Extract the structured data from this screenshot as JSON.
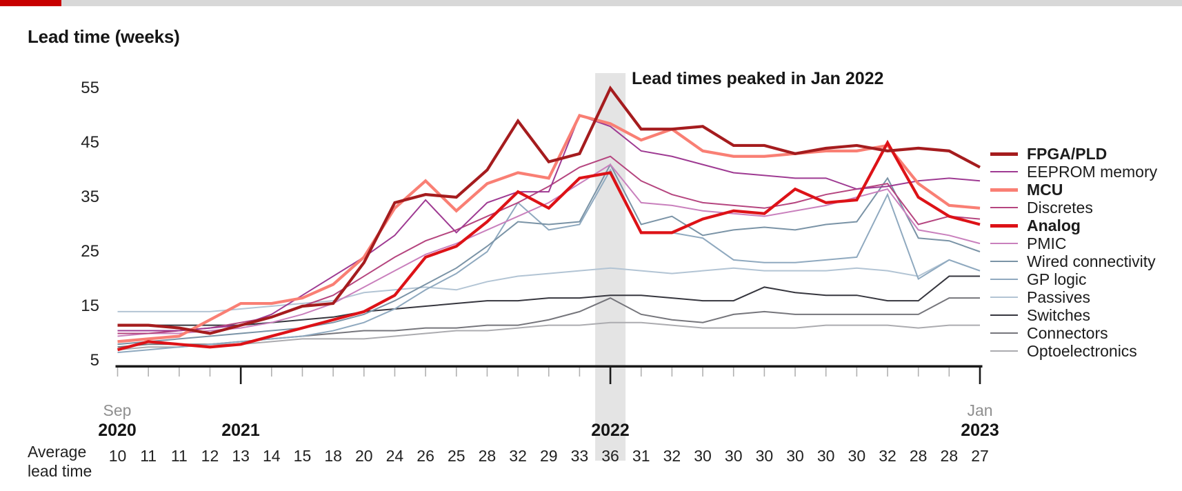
{
  "page": {
    "accent_bar_red": "#c80000",
    "accent_bar_gray": "#d8d8d8",
    "title": "Lead time (weeks)",
    "annotation": "Lead times peaked in Jan 2022"
  },
  "x_axis": {
    "first_month": "Sep",
    "first_year": "2020",
    "year_2021": "2021",
    "year_2022": "2022",
    "last_month": "Jan",
    "last_year": "2023"
  },
  "average_row": {
    "label_line1": "Average",
    "label_line2": "lead time",
    "values": [
      10,
      11,
      11,
      12,
      13,
      14,
      15,
      18,
      20,
      24,
      26,
      25,
      28,
      32,
      29,
      33,
      36,
      31,
      32,
      30,
      30,
      30,
      30,
      30,
      30,
      32,
      28,
      28,
      27
    ]
  },
  "highlight": {
    "label": "Jan 2022",
    "month_index": 16,
    "band_color": "#e4e4e4"
  },
  "chart_data": {
    "type": "line",
    "title": "Lead time (weeks)",
    "ylabel": "Lead time (weeks)",
    "ylim": [
      5,
      57
    ],
    "y_ticks": [
      55,
      45,
      35,
      25,
      15,
      5
    ],
    "grid": false,
    "legend_position": "right",
    "annotation": "Lead times peaked in Jan 2022",
    "x": [
      "Sep 2020",
      "Oct 2020",
      "Nov 2020",
      "Dec 2020",
      "Jan 2021",
      "Feb 2021",
      "Mar 2021",
      "Apr 2021",
      "May 2021",
      "Jun 2021",
      "Jul 2021",
      "Aug 2021",
      "Sep 2021",
      "Oct 2021",
      "Nov 2021",
      "Dec 2021",
      "Jan 2022",
      "Feb 2022",
      "Mar 2022",
      "Apr 2022",
      "May 2022",
      "Jun 2022",
      "Jul 2022",
      "Aug 2022",
      "Sep 2022",
      "Oct 2022",
      "Nov 2022",
      "Dec 2022",
      "Jan 2023"
    ],
    "series": [
      {
        "name": "FPGA/PLD",
        "bold": true,
        "color": "#a51c1e",
        "values": [
          11.5,
          11.5,
          11,
          10,
          11.5,
          13,
          15,
          15.5,
          23,
          34,
          35.5,
          35,
          40,
          49,
          41.5,
          43,
          55,
          47.5,
          47.5,
          48,
          44.5,
          44.5,
          43,
          44,
          44.5,
          43.5,
          44,
          43.5,
          40.5
        ]
      },
      {
        "name": "EEPROM memory",
        "bold": false,
        "color": "#9e3a92",
        "values": [
          10.5,
          10.5,
          10.5,
          11,
          11.5,
          13.5,
          17,
          20.5,
          24,
          28,
          34.5,
          28.5,
          34,
          36,
          36,
          50,
          48,
          43.5,
          42.5,
          41,
          39.5,
          39,
          38.5,
          38.5,
          36.5,
          37,
          38,
          38.5,
          38
        ]
      },
      {
        "name": "MCU",
        "bold": true,
        "color": "#f97f74",
        "values": [
          8.5,
          9,
          9.5,
          12.5,
          15.5,
          15.5,
          16.5,
          19,
          24,
          33,
          38,
          32.5,
          37.5,
          39.5,
          38.5,
          50,
          48.5,
          45.5,
          47.5,
          43.5,
          42.5,
          42.5,
          43,
          43.5,
          43.5,
          44.5,
          37.5,
          33.5,
          33
        ]
      },
      {
        "name": "Discretes",
        "bold": false,
        "color": "#b5457f",
        "values": [
          10,
          10,
          10.5,
          11,
          12,
          13,
          15,
          17,
          20.5,
          24,
          27,
          29,
          31.5,
          34,
          37,
          40.5,
          42.5,
          38,
          35.5,
          34,
          33.5,
          33,
          34,
          35.5,
          36.5,
          37.5,
          30,
          31.5,
          31
        ]
      },
      {
        "name": "Analog",
        "bold": true,
        "color": "#dd1217",
        "values": [
          7,
          8.5,
          8,
          7.5,
          8,
          9.5,
          11,
          12.5,
          14,
          17,
          24,
          26,
          30.5,
          36,
          33,
          38.5,
          39.5,
          28.5,
          28.5,
          31,
          32.5,
          32,
          36.5,
          34,
          34.5,
          45,
          35,
          31.5,
          30
        ]
      },
      {
        "name": "PMIC",
        "bold": false,
        "color": "#c980bd",
        "values": [
          9.5,
          10,
          10,
          10.5,
          11,
          12,
          13.5,
          15.5,
          18.5,
          21.5,
          24.5,
          26.5,
          29,
          31.5,
          34,
          37.5,
          41,
          34,
          33.5,
          32.5,
          32,
          31.5,
          32.5,
          33.5,
          35,
          36.5,
          29,
          28,
          26.5
        ]
      },
      {
        "name": "Wired connectivity",
        "bold": false,
        "color": "#7a93a6",
        "values": [
          8,
          8.5,
          9,
          9.5,
          10,
          10.5,
          11,
          12,
          13.5,
          16,
          19,
          22,
          26,
          30.5,
          30,
          30.5,
          41,
          30,
          31.5,
          28,
          29,
          29.5,
          29,
          30,
          30.5,
          38.5,
          27.5,
          27,
          25
        ]
      },
      {
        "name": "GP logic",
        "bold": false,
        "color": "#8fa9bf",
        "values": [
          6.5,
          7,
          7.5,
          8,
          8.5,
          9,
          9.5,
          10.5,
          12,
          14.5,
          18,
          21,
          25,
          34,
          29,
          30,
          40,
          28.5,
          28.5,
          27.5,
          23.5,
          23,
          23,
          23.5,
          24,
          35.5,
          20,
          23.5,
          21.5
        ]
      },
      {
        "name": "Passives",
        "bold": false,
        "color": "#b2c4d4",
        "values": [
          14,
          14,
          14,
          14,
          14.5,
          15,
          15.5,
          16,
          17.5,
          18,
          18.5,
          18,
          19.5,
          20.5,
          21,
          21.5,
          22,
          21.5,
          21,
          21.5,
          22,
          21.5,
          21.5,
          21.5,
          22,
          21.5,
          20.5,
          23.5,
          21.5
        ]
      },
      {
        "name": "Switches",
        "bold": false,
        "color": "#36363e",
        "values": [
          11.5,
          11.5,
          11.5,
          11.5,
          11.5,
          12,
          12.5,
          13,
          14,
          14.5,
          15,
          15.5,
          16,
          16,
          16.5,
          16.5,
          17,
          17,
          16.5,
          16,
          16,
          18.5,
          17.5,
          17,
          17,
          16,
          16,
          20.5,
          20.5
        ]
      },
      {
        "name": "Connectors",
        "bold": false,
        "color": "#75757b",
        "values": [
          7.5,
          8,
          8,
          8,
          8.5,
          9,
          9.5,
          10,
          10.5,
          10.5,
          11,
          11,
          11.5,
          11.5,
          12.5,
          14,
          16.5,
          13.5,
          12.5,
          12,
          13.5,
          14,
          13.5,
          13.5,
          13.5,
          13.5,
          13.5,
          16.5,
          16.5
        ]
      },
      {
        "name": "Optoelectronics",
        "bold": false,
        "color": "#ababaf",
        "values": [
          7,
          7.5,
          7.5,
          8,
          8,
          8.5,
          9,
          9,
          9,
          9.5,
          10,
          10.5,
          10.5,
          11,
          11.5,
          11.5,
          12,
          12,
          11.5,
          11,
          11,
          11,
          11,
          11.5,
          11.5,
          11.5,
          11,
          11.5,
          11.5
        ]
      }
    ]
  }
}
